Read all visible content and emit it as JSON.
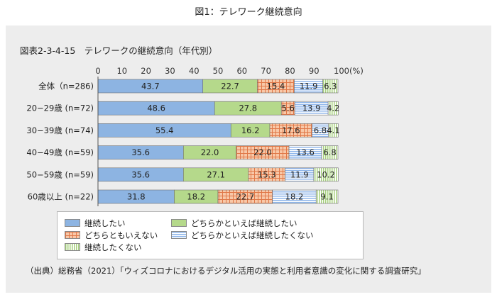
{
  "page_caption": "図1：テレワーク継続意向",
  "chart_data": {
    "type": "bar",
    "orientation": "horizontal",
    "stacked": true,
    "title": "図表2-3-4-15　テレワークの継続意向（年代別）",
    "x_ticks": [
      "0",
      "10",
      "20",
      "30",
      "40",
      "50",
      "60",
      "70",
      "80",
      "90",
      "100(%)"
    ],
    "xlim": [
      0,
      100
    ],
    "categories": [
      "全体（n=286)",
      "20−29歳 (n=72)",
      "30−39歳 (n=74)",
      "40−49歳 (n=59)",
      "50−59歳 (n=59)",
      "60歳以上 (n=22)"
    ],
    "series": [
      {
        "name": "継続したい",
        "color": "#8db4e2",
        "values": [
          43.7,
          48.6,
          55.4,
          35.6,
          35.6,
          31.8
        ]
      },
      {
        "name": "どちらかといえば継続したい",
        "color": "#b5d98b",
        "values": [
          22.7,
          27.8,
          16.2,
          22.0,
          27.1,
          18.2
        ]
      },
      {
        "name": "どちらともいえない",
        "color": "#f0a078",
        "values": [
          15.4,
          5.6,
          17.6,
          22.0,
          15.3,
          22.7
        ]
      },
      {
        "name": "どちらかといえば継続したくない",
        "color": "#a8c8ef",
        "values": [
          11.9,
          13.9,
          6.8,
          13.6,
          11.9,
          18.2
        ]
      },
      {
        "name": "継続したくない",
        "color": "#c4e09c",
        "values": [
          6.3,
          4.2,
          4.1,
          6.8,
          10.2,
          9.1
        ]
      }
    ],
    "data_labels": [
      [
        "43.7",
        "22.7",
        "15.4",
        "11.9",
        "6.3"
      ],
      [
        "48.6",
        "27.8",
        "5.6",
        "13.9",
        "4.2"
      ],
      [
        "55.4",
        "16.2",
        "17.6",
        "6.8",
        "4.1"
      ],
      [
        "35.6",
        "22.0",
        "22.0",
        "13.6",
        "6.8"
      ],
      [
        "35.6",
        "27.1",
        "15.3",
        "11.9",
        "10.2"
      ],
      [
        "31.8",
        "18.2",
        "22.7",
        "18.2",
        "9.1"
      ]
    ],
    "grid": false,
    "legend_position": "bottom-left"
  },
  "legend": {
    "items": [
      {
        "label": "継続したい",
        "pattern": "solid-blue"
      },
      {
        "label": "どちらかといえば継続したい",
        "pattern": "solid-green"
      },
      {
        "label": "どちらともいえない",
        "pattern": "orange-grid"
      },
      {
        "label": "どちらかといえば継続したくない",
        "pattern": "blue-stripes"
      },
      {
        "label": "継続したくない",
        "pattern": "green-stripes"
      }
    ]
  },
  "source": "（出典）総務省（2021）「ウィズコロナにおけるデジタル活用の実態と利用者意識の変化に関する調査研究」"
}
